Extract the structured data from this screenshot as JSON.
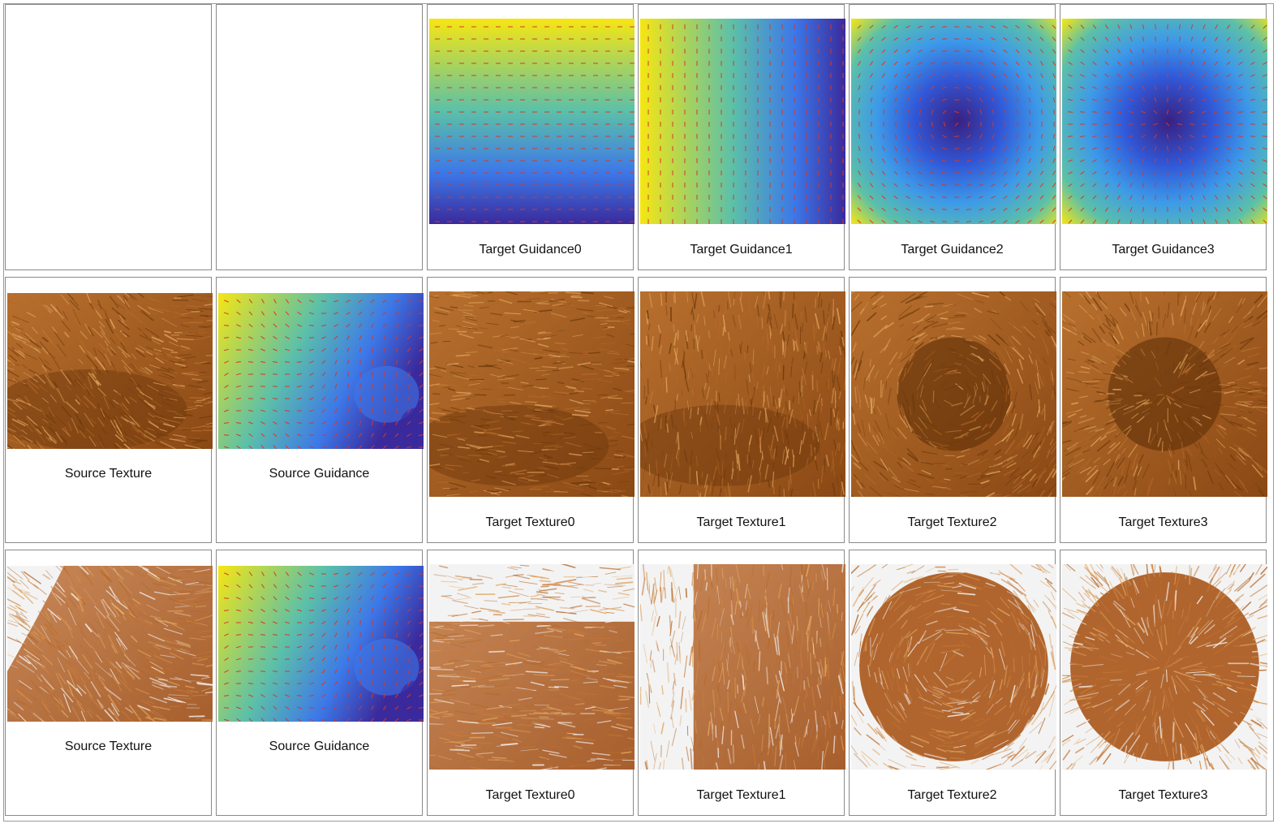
{
  "rows": [
    {
      "cells": [
        {
          "kind": "empty",
          "caption": ""
        },
        {
          "kind": "empty",
          "caption": ""
        },
        {
          "kind": "guide-h",
          "caption": "Target Guidance0"
        },
        {
          "kind": "guide-v",
          "caption": "Target Guidance1"
        },
        {
          "kind": "guide-swirl",
          "caption": "Target Guidance2"
        },
        {
          "kind": "guide-radial",
          "caption": "Target Guidance3"
        }
      ]
    },
    {
      "cells": [
        {
          "kind": "src-fur-a",
          "caption": "Source Texture"
        },
        {
          "kind": "src-guide-a",
          "caption": "Source Guidance"
        },
        {
          "kind": "fur-a-horizontal",
          "caption": "Target Texture0"
        },
        {
          "kind": "fur-a-vertical",
          "caption": "Target Texture1"
        },
        {
          "kind": "fur-a-swirl",
          "caption": "Target Texture2"
        },
        {
          "kind": "fur-a-radial",
          "caption": "Target Texture3"
        }
      ]
    },
    {
      "cells": [
        {
          "kind": "src-fur-b",
          "caption": "Source Texture"
        },
        {
          "kind": "src-guide-b",
          "caption": "Source Guidance"
        },
        {
          "kind": "fur-b-horizontal",
          "caption": "Target Texture0"
        },
        {
          "kind": "fur-b-vertical",
          "caption": "Target Texture1"
        },
        {
          "kind": "fur-b-swirl",
          "caption": "Target Texture2"
        },
        {
          "kind": "fur-b-radial",
          "caption": "Target Texture3"
        }
      ]
    }
  ],
  "colors": {
    "viridis_low": "#3b2a9c",
    "viridis_mid": "#3d78e8",
    "viridis_teal": "#5cc0a8",
    "viridis_high": "#f6e612",
    "arrow": "#d23a2a",
    "fur_dark": "#6e3a0c",
    "fur_mid": "#b5692a",
    "fur_light": "#e0a55e",
    "fur_white": "#f3f3f3"
  }
}
